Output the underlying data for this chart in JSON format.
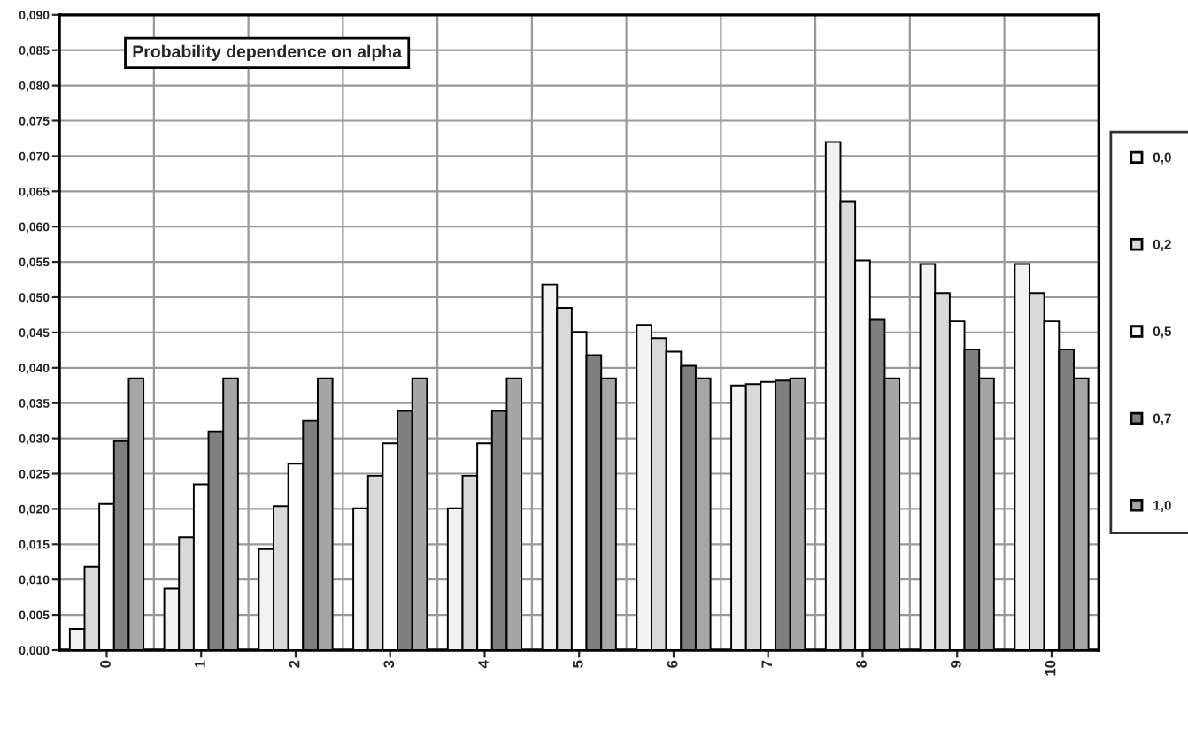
{
  "chart_data": {
    "type": "bar",
    "title": "Probability dependence on alpha",
    "categories": [
      "0",
      "1",
      "2",
      "3",
      "4",
      "5",
      "6",
      "7",
      "8",
      "9",
      "10"
    ],
    "series": [
      {
        "name": "0,0",
        "color": "#f2f2f2",
        "values": [
          0.003,
          0.0087,
          0.0143,
          0.0201,
          0.0201,
          0.0518,
          0.0461,
          0.0375,
          0.072,
          0.0547,
          0.0547
        ]
      },
      {
        "name": "0,2",
        "color": "#d9d9d9",
        "values": [
          0.0118,
          0.016,
          0.0204,
          0.0247,
          0.0247,
          0.0485,
          0.0442,
          0.0377,
          0.0636,
          0.0506,
          0.0506
        ]
      },
      {
        "name": "0,5",
        "color": "#ffffff",
        "values": [
          0.0207,
          0.0235,
          0.0264,
          0.0293,
          0.0293,
          0.0451,
          0.0423,
          0.038,
          0.0552,
          0.0466,
          0.0466
        ]
      },
      {
        "name": "0,7",
        "color": "#7f7f7f",
        "values": [
          0.0296,
          0.031,
          0.0325,
          0.0339,
          0.0339,
          0.0418,
          0.0403,
          0.0382,
          0.0468,
          0.0426,
          0.0426
        ]
      },
      {
        "name": "1,0",
        "color": "#a6a6a6",
        "values": [
          0.0385,
          0.0385,
          0.0385,
          0.0385,
          0.0385,
          0.0385,
          0.0385,
          0.0385,
          0.0385,
          0.0385,
          0.0385
        ]
      }
    ],
    "ylim": [
      0,
      0.09
    ],
    "yticks": [
      {
        "value": 0,
        "label": "0,000"
      },
      {
        "value": 0.005,
        "label": "0,005"
      },
      {
        "value": 0.01,
        "label": "0,010"
      },
      {
        "value": 0.015,
        "label": "0,015"
      },
      {
        "value": 0.02,
        "label": "0,020"
      },
      {
        "value": 0.025,
        "label": "0,025"
      },
      {
        "value": 0.03,
        "label": "0,030"
      },
      {
        "value": 0.035,
        "label": "0,035"
      },
      {
        "value": 0.04,
        "label": "0,040"
      },
      {
        "value": 0.045,
        "label": "0,045"
      },
      {
        "value": 0.05,
        "label": "0,050"
      },
      {
        "value": 0.055,
        "label": "0,055"
      },
      {
        "value": 0.06,
        "label": "0,060"
      },
      {
        "value": 0.065,
        "label": "0,065"
      },
      {
        "value": 0.07,
        "label": "0,070"
      },
      {
        "value": 0.075,
        "label": "0,075"
      },
      {
        "value": 0.08,
        "label": "0,080"
      },
      {
        "value": 0.085,
        "label": "0,085"
      },
      {
        "value": 0.09,
        "label": "0,090"
      }
    ],
    "grid": true,
    "legend": "right"
  }
}
